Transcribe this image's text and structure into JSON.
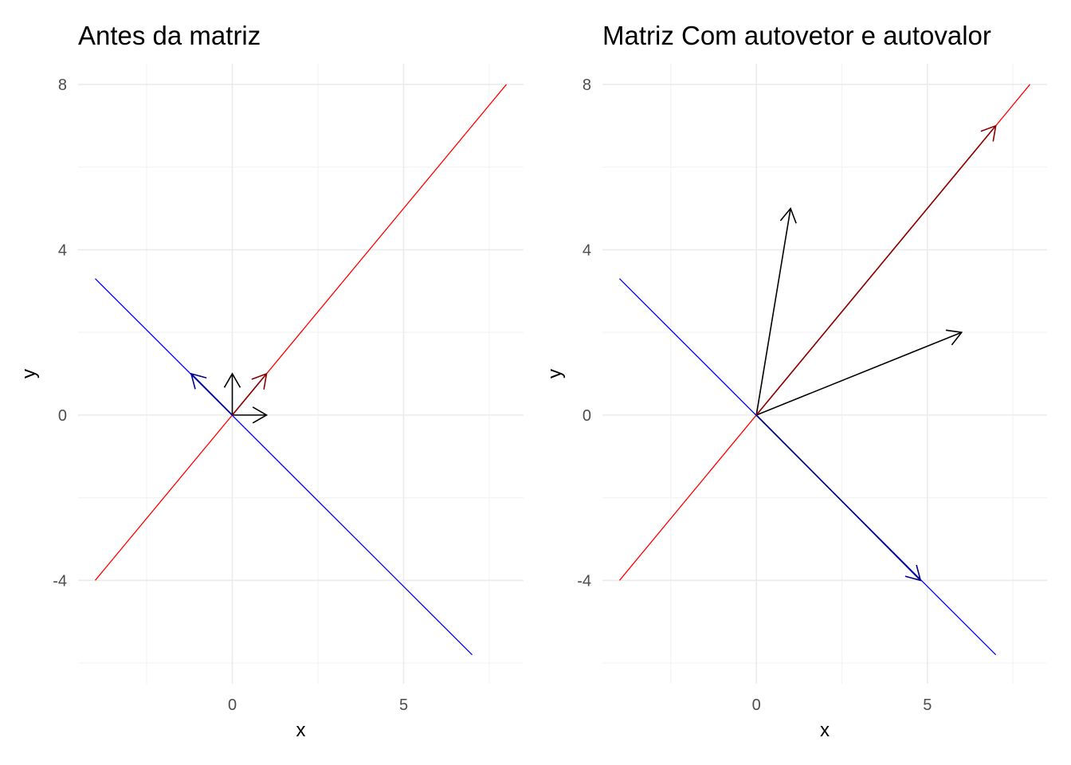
{
  "chart_data": [
    {
      "type": "line",
      "title": "Antes da matriz",
      "xlabel": "x",
      "ylabel": "y",
      "xlim": [
        -4.5,
        8.5
      ],
      "ylim": [
        -6.5,
        8.5
      ],
      "xticks": [
        0,
        5
      ],
      "xtick_labels": [
        "0",
        "5"
      ],
      "yticks": [
        -4,
        0,
        4,
        8
      ],
      "ytick_labels": [
        "-4",
        "0",
        "4",
        "8"
      ],
      "grid": true,
      "lines": [
        {
          "color": "#ff0000",
          "points": [
            [
              -4,
              -4
            ],
            [
              8,
              8
            ]
          ]
        },
        {
          "color": "#0000ff",
          "points": [
            [
              -4,
              3.3
            ],
            [
              7,
              -5.8
            ]
          ]
        }
      ],
      "vectors": [
        {
          "from": [
            0,
            0
          ],
          "to": [
            1,
            0
          ],
          "color": "#000000"
        },
        {
          "from": [
            0,
            0
          ],
          "to": [
            0,
            1
          ],
          "color": "#000000"
        },
        {
          "from": [
            0,
            0
          ],
          "to": [
            1,
            1
          ],
          "color": "#8b0000"
        },
        {
          "from": [
            0,
            0
          ],
          "to": [
            -1.2,
            1
          ],
          "color": "#00008b"
        }
      ]
    },
    {
      "type": "line",
      "title": "Matriz Com autovetor e autovalor",
      "xlabel": "x",
      "ylabel": "y",
      "xlim": [
        -4.5,
        8.5
      ],
      "ylim": [
        -6.5,
        8.5
      ],
      "xticks": [
        0,
        5
      ],
      "xtick_labels": [
        "0",
        "5"
      ],
      "yticks": [
        -4,
        0,
        4,
        8
      ],
      "ytick_labels": [
        "-4",
        "0",
        "4",
        "8"
      ],
      "grid": true,
      "lines": [
        {
          "color": "#ff0000",
          "points": [
            [
              -4,
              -4
            ],
            [
              8,
              8
            ]
          ]
        },
        {
          "color": "#0000ff",
          "points": [
            [
              -4,
              3.3
            ],
            [
              7,
              -5.8
            ]
          ]
        }
      ],
      "vectors": [
        {
          "from": [
            0,
            0
          ],
          "to": [
            6,
            2
          ],
          "color": "#000000"
        },
        {
          "from": [
            0,
            0
          ],
          "to": [
            1,
            5
          ],
          "color": "#000000"
        },
        {
          "from": [
            0,
            0
          ],
          "to": [
            7,
            7
          ],
          "color": "#8b0000"
        },
        {
          "from": [
            0,
            0
          ],
          "to": [
            4.8,
            -4
          ],
          "color": "#00008b"
        }
      ]
    }
  ]
}
